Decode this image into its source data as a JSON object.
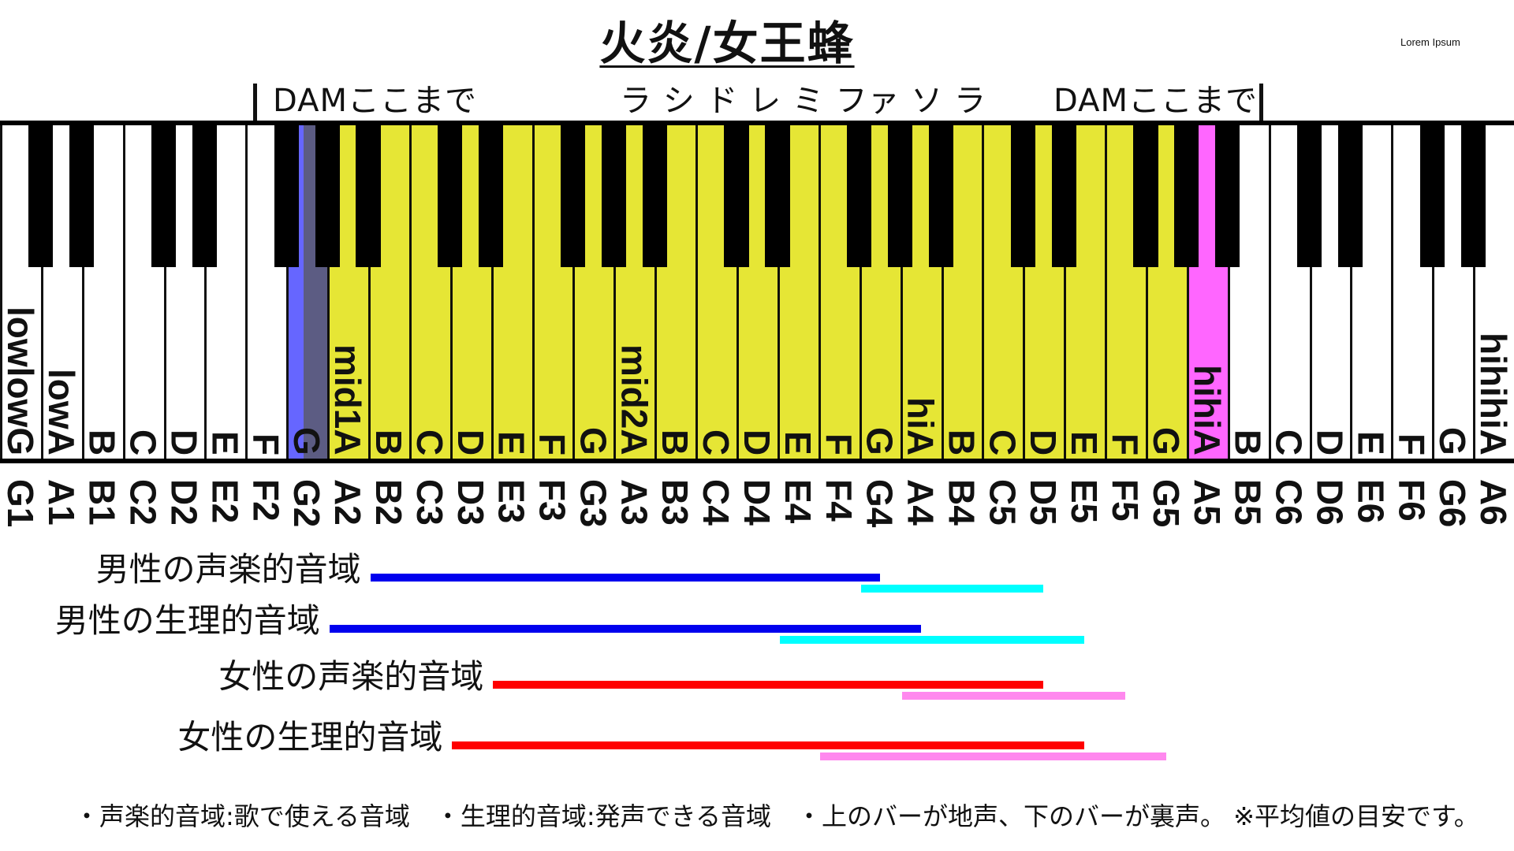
{
  "title": "火炎/女王蜂",
  "corner_text": "Lorem Ipsum",
  "top_markers": {
    "left": "DAMここまで",
    "center": "ラ シ ド レ ミ ファ ソ ラ",
    "right": "DAMここまで"
  },
  "colors": {
    "song_range": "#ffff66",
    "low_limit": "#6666ff",
    "high_limit": "#ff66ff",
    "male_chest": "#0000ee",
    "male_falsetto": "#00ffff",
    "female_chest": "#ff0000",
    "female_falsetto": "#ff88ee"
  },
  "keyboard": {
    "white_notes": [
      "G1",
      "A1",
      "B1",
      "C2",
      "D2",
      "E2",
      "F2",
      "G2",
      "A2",
      "B2",
      "C3",
      "D3",
      "E3",
      "F3",
      "G3",
      "A3",
      "B3",
      "C4",
      "D4",
      "E4",
      "F4",
      "G4",
      "A4",
      "B4",
      "C5",
      "D5",
      "E5",
      "F5",
      "G5",
      "A5",
      "B5",
      "C6",
      "D6",
      "E6",
      "F6",
      "G6",
      "A6"
    ],
    "key_labels": [
      "lowlowG",
      "lowA",
      "B",
      "C",
      "D",
      "E",
      "F",
      "G",
      "mid1A",
      "B",
      "C",
      "D",
      "E",
      "F",
      "G",
      "mid2A",
      "B",
      "C",
      "D",
      "E",
      "F",
      "G",
      "hiA",
      "B",
      "C",
      "D",
      "E",
      "F",
      "G",
      "hihiA",
      "B",
      "C",
      "D",
      "E",
      "F",
      "G",
      "hihihiA"
    ],
    "song_lowest": "G2",
    "song_highest": "A5"
  },
  "ranges": [
    {
      "label": "男性の声楽的音域",
      "chest": [
        "B2",
        "G4"
      ],
      "falsetto": [
        "G4",
        "D5"
      ]
    },
    {
      "label": "男性の生理的音域",
      "chest": [
        "A2",
        "A4"
      ],
      "falsetto": [
        "E4",
        "E5"
      ]
    },
    {
      "label": "女性の声楽的音域",
      "chest": [
        "E3",
        "D5"
      ],
      "falsetto": [
        "A4",
        "F5"
      ]
    },
    {
      "label": "女性の生理的音域",
      "chest": [
        "D3",
        "E5"
      ],
      "falsetto": [
        "F4",
        "G5"
      ]
    }
  ],
  "footnote": "・声楽的音域:歌で使える音域　・生理的音域:発声できる音域　・上のバーが地声、下のバーが裏声。 ※平均値の目安です。"
}
